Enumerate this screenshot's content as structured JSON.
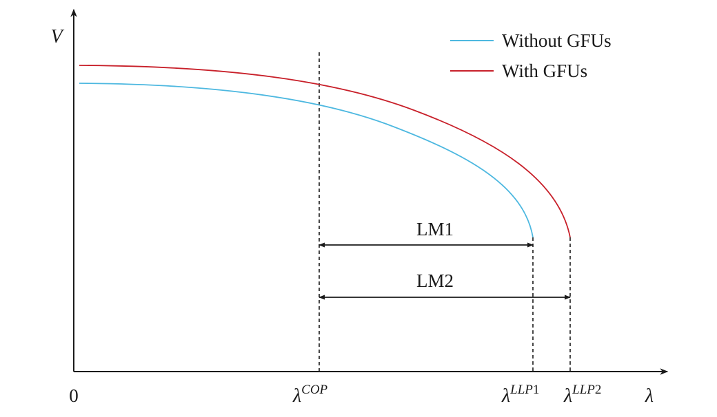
{
  "axes": {
    "y_label": "V",
    "x_label": "λ",
    "origin_label": "0"
  },
  "markers": [
    {
      "id": "cop",
      "base": "λ",
      "sup": "COP",
      "sup_tail": ""
    },
    {
      "id": "llp1",
      "base": "λ",
      "sup": "LLP",
      "sup_tail": "1"
    },
    {
      "id": "llp2",
      "base": "λ",
      "sup": "LLP",
      "sup_tail": "2"
    }
  ],
  "legend": [
    {
      "label": "Without GFUs",
      "color": "#4db8e0"
    },
    {
      "label": "With GFUs",
      "color": "#c8202a"
    }
  ],
  "margins": [
    {
      "label": "LM1"
    },
    {
      "label": "LM2"
    }
  ],
  "colors": {
    "axis": "#1a1a1a",
    "without_gfus": "#4db8e0",
    "with_gfus": "#c8202a"
  }
}
